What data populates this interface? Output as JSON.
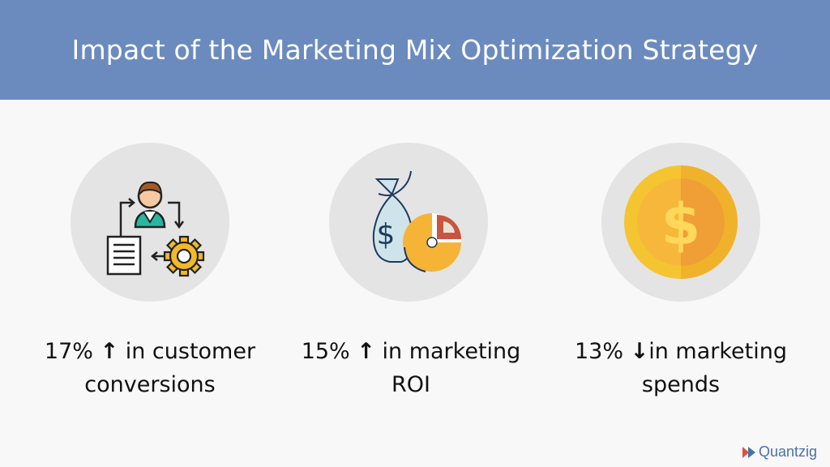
{
  "header": {
    "title": "Impact of the Marketing Mix Optimization Strategy"
  },
  "cards": [
    {
      "icon": "customer-conversion-icon",
      "line1_value": "17%",
      "line1_arrow": "↑",
      "line1_text": "in customer",
      "line2": "conversions"
    },
    {
      "icon": "money-bag-roi-icon",
      "line1_value": "15%",
      "line1_arrow": "↑",
      "line1_text": "in marketing",
      "line2": "ROI"
    },
    {
      "icon": "gold-coin-icon",
      "line1_value": "13%",
      "line1_arrow": "↓",
      "line1_text": "in marketing",
      "line2": "spends"
    }
  ],
  "logo": {
    "text": "Quantzig"
  },
  "colors": {
    "header_bg": "#6b8bbf",
    "circle_bg": "#e4e4e4",
    "coin_gold": "#f5c531",
    "coin_orange": "#ef9f35",
    "brand": "#4c6fa8"
  }
}
